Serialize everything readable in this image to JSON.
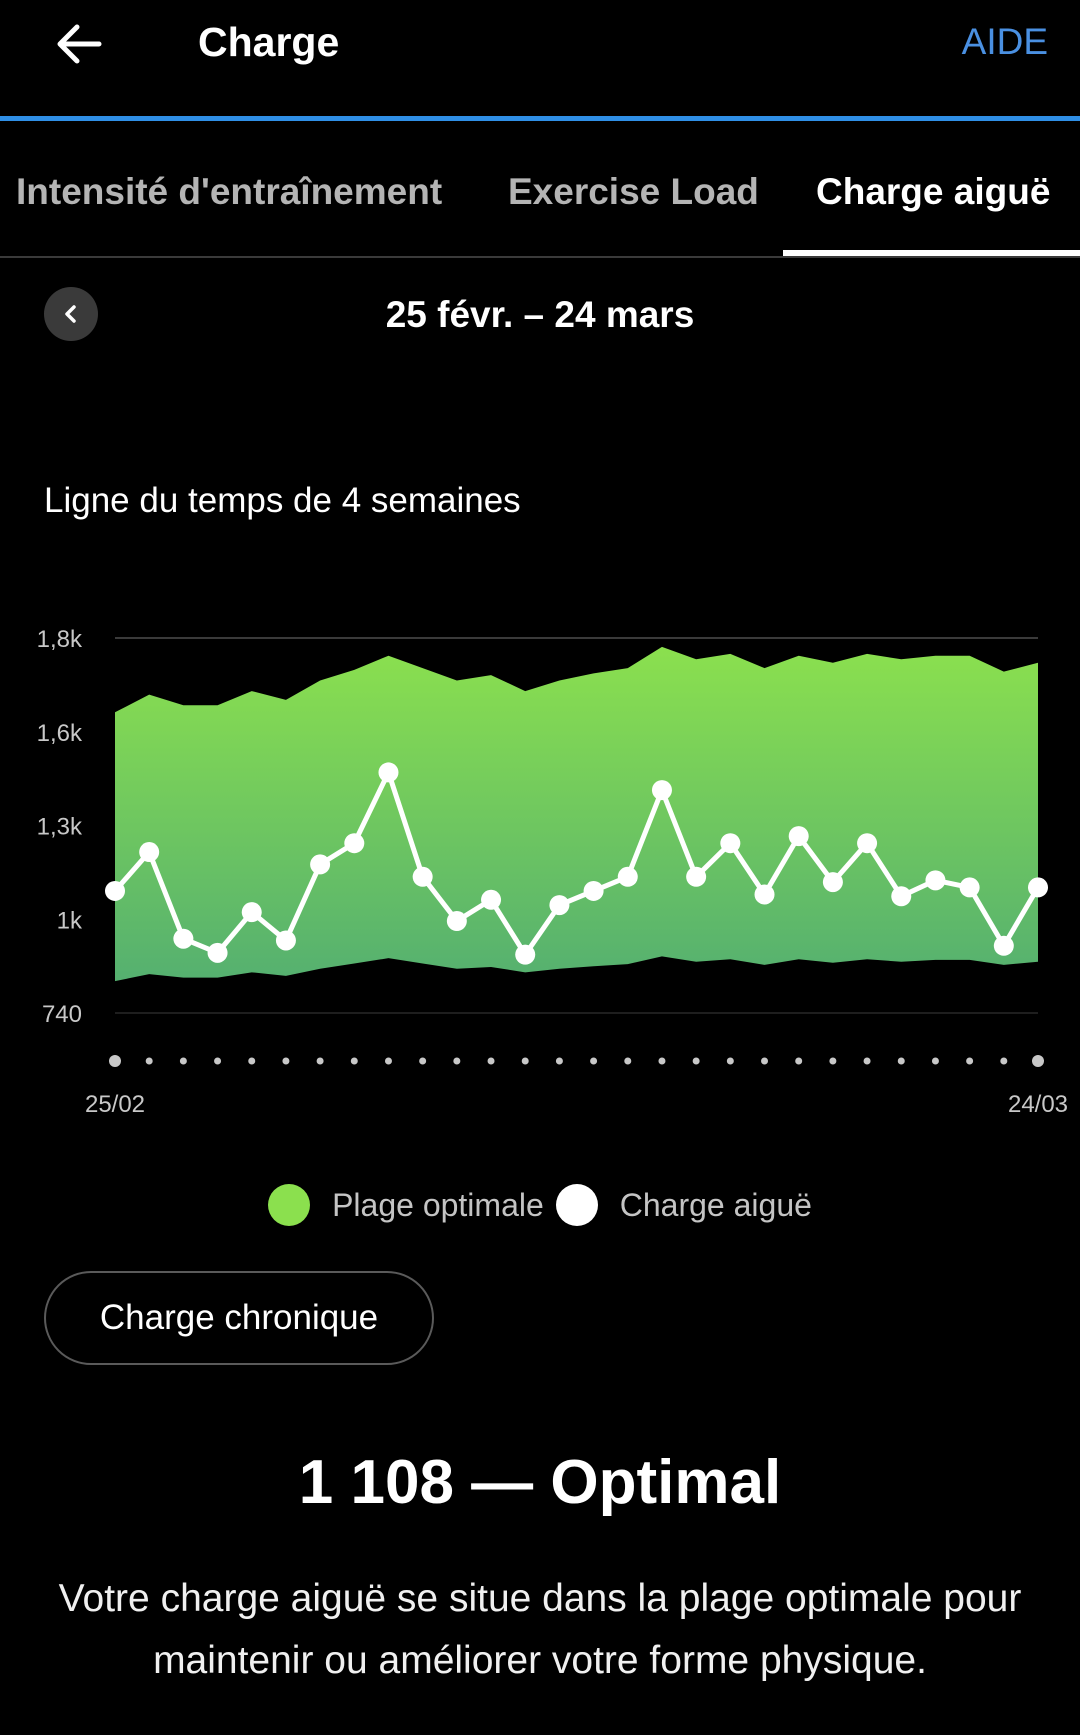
{
  "header": {
    "title": "Charge",
    "help_label": "AIDE",
    "back_icon": "arrow-left-icon"
  },
  "tabs": [
    {
      "label": "Intensité d'entraînement",
      "active": false
    },
    {
      "label": "Exercise Load",
      "active": false
    },
    {
      "label": "Charge aiguë",
      "active": true
    }
  ],
  "date_nav": {
    "range": "25 févr. – 24 mars",
    "prev_icon": "chevron-left-icon"
  },
  "chart_title": "Ligne du temps de 4 semaines",
  "chart_data": {
    "type": "area",
    "x_start_label": "25/02",
    "x_end_label": "24/03",
    "yticks": [
      "1,8k",
      "1,6k",
      "1,3k",
      "1k",
      "740"
    ],
    "ylim": [
      740,
      1800
    ],
    "series": [
      {
        "name": "Plage optimale",
        "color": "#8be04e",
        "upper": [
          1590,
          1640,
          1610,
          1610,
          1650,
          1625,
          1680,
          1710,
          1750,
          1715,
          1680,
          1695,
          1650,
          1680,
          1700,
          1715,
          1775,
          1740,
          1755,
          1715,
          1750,
          1730,
          1755,
          1740,
          1750,
          1750,
          1705,
          1730
        ],
        "lower": [
          830,
          850,
          840,
          840,
          855,
          845,
          865,
          880,
          895,
          880,
          865,
          870,
          855,
          865,
          872,
          878,
          900,
          885,
          892,
          876,
          892,
          882,
          892,
          885,
          890,
          890,
          876,
          885
        ]
      },
      {
        "name": "Charge aiguë",
        "color": "#ffffff",
        "values": [
          1085,
          1195,
          950,
          910,
          1025,
          945,
          1160,
          1220,
          1420,
          1125,
          1000,
          1060,
          905,
          1045,
          1085,
          1125,
          1370,
          1125,
          1220,
          1075,
          1240,
          1110,
          1220,
          1070,
          1115,
          1095,
          930,
          1095
        ]
      }
    ]
  },
  "legend": [
    {
      "label": "Plage optimale",
      "color": "#8be04e"
    },
    {
      "label": "Charge aiguë",
      "color": "#ffffff"
    }
  ],
  "chronic_button": "Charge chronique",
  "status": "1 108 — Optimal",
  "description": "Votre charge aiguë se situe dans la plage optimale pour maintenir ou améliorer votre forme physique."
}
